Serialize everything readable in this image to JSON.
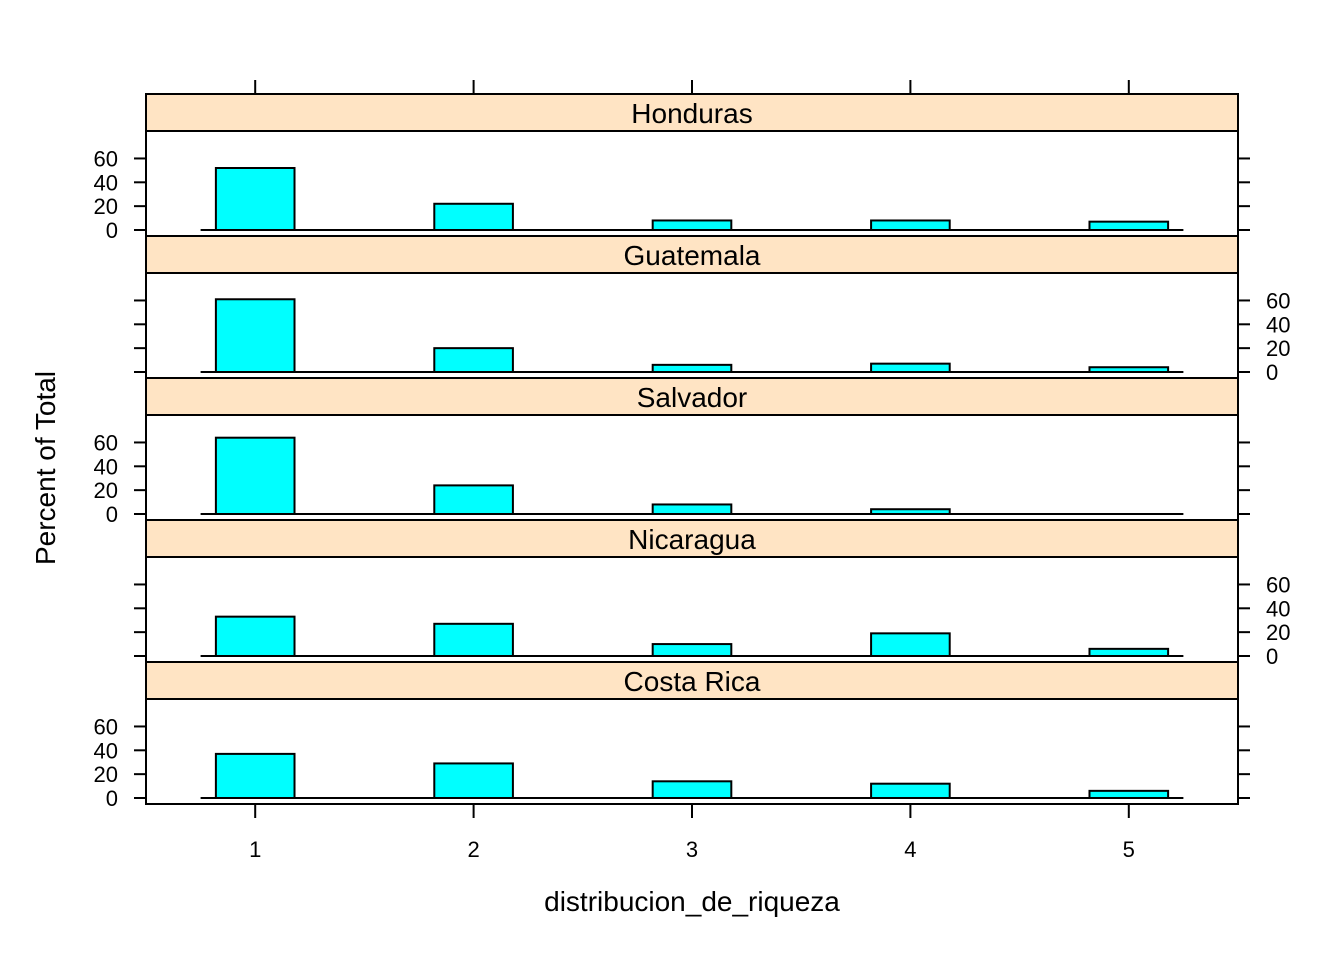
{
  "chart_data": {
    "type": "bar",
    "xlabel": "distribucion_de_riqueza",
    "ylabel": "Percent of Total",
    "categories": [
      "1",
      "2",
      "3",
      "4",
      "5"
    ],
    "x_ticks": [
      "1",
      "2",
      "3",
      "4",
      "5"
    ],
    "y_ticks": [
      "0",
      "20",
      "40",
      "60"
    ],
    "ylim": [
      0,
      78
    ],
    "grid": false,
    "bar_color": "#00ffff",
    "strip_color": "#ffe4c4",
    "panels": [
      {
        "name": "Honduras",
        "values": [
          52,
          22,
          8,
          8,
          7
        ],
        "yaxis": "left"
      },
      {
        "name": "Guatemala",
        "values": [
          61,
          20,
          6,
          7,
          4
        ],
        "yaxis": "right"
      },
      {
        "name": "Salvador",
        "values": [
          64,
          24,
          8,
          4,
          0
        ],
        "yaxis": "left"
      },
      {
        "name": "Nicaragua",
        "values": [
          33,
          27,
          10,
          19,
          6
        ],
        "yaxis": "right"
      },
      {
        "name": "Costa Rica",
        "values": [
          37,
          29,
          14,
          12,
          6
        ],
        "yaxis": "left"
      }
    ]
  }
}
